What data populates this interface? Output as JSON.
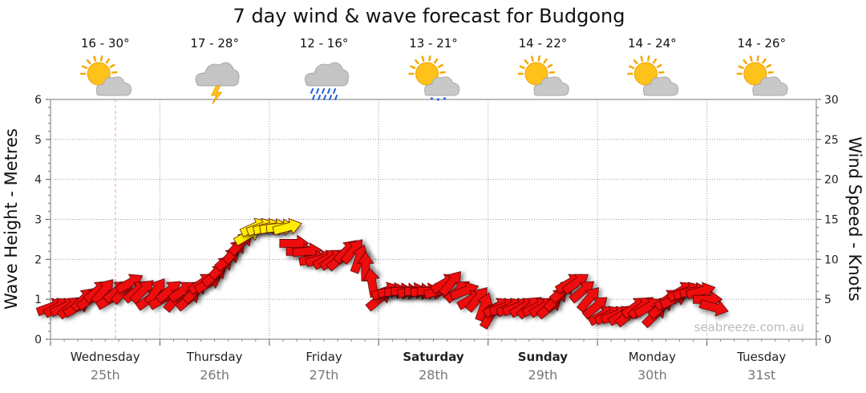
{
  "chart_data": {
    "type": "line",
    "title": "7 day wind & wave forecast for Budgong",
    "y_left": {
      "label": "Wave Height - Metres",
      "ticks": [
        0,
        1,
        2,
        3,
        4,
        5,
        6
      ],
      "ylim": [
        0,
        6
      ]
    },
    "y_right": {
      "label": "Wind Speed - Knots",
      "ticks": [
        0,
        5,
        10,
        15,
        20,
        25,
        30
      ],
      "ylim": [
        0,
        30
      ]
    },
    "days": [
      {
        "name": "Wednesday",
        "date": "25th",
        "bold": false,
        "temp": "16 - 30°",
        "icon": "sun-cloud-icon"
      },
      {
        "name": "Thursday",
        "date": "26th",
        "bold": false,
        "temp": "17 - 28°",
        "icon": "cloud-lightning-icon"
      },
      {
        "name": "Friday",
        "date": "27th",
        "bold": false,
        "temp": "12 - 16°",
        "icon": "rain-cloud-icon"
      },
      {
        "name": "Saturday",
        "date": "28th",
        "bold": true,
        "temp": "13 - 21°",
        "icon": "sun-cloud-drizzle-icon"
      },
      {
        "name": "Sunday",
        "date": "29th",
        "bold": true,
        "temp": "14 - 22°",
        "icon": "sun-cloud-icon"
      },
      {
        "name": "Monday",
        "date": "30th",
        "bold": false,
        "temp": "14 - 24°",
        "icon": "sun-cloud-icon"
      },
      {
        "name": "Tuesday",
        "date": "31st",
        "bold": false,
        "temp": "14 - 26°",
        "icon": "sun-cloud-icon"
      }
    ],
    "series": [
      {
        "name": "Wind Speed",
        "unit": "knots",
        "colors": {
          "normal": "#ee1111",
          "strong": "#ffee00"
        },
        "points": [
          [
            0.0,
            4,
            250
          ],
          [
            0.06,
            4,
            240
          ],
          [
            0.12,
            4,
            245
          ],
          [
            0.18,
            4,
            230
          ],
          [
            0.24,
            4,
            240
          ],
          [
            0.3,
            5,
            225
          ],
          [
            0.36,
            5,
            235
          ],
          [
            0.42,
            6,
            230
          ],
          [
            0.48,
            6,
            220
          ],
          [
            0.54,
            5,
            240
          ],
          [
            0.6,
            6,
            230
          ],
          [
            0.66,
            6,
            220
          ],
          [
            0.72,
            7,
            240
          ],
          [
            0.78,
            6,
            230
          ],
          [
            0.84,
            6,
            225
          ],
          [
            0.9,
            5,
            235
          ],
          [
            0.96,
            6,
            215
          ],
          [
            1.02,
            5,
            240
          ],
          [
            1.08,
            6,
            230
          ],
          [
            1.14,
            5,
            220
          ],
          [
            1.2,
            6,
            235
          ],
          [
            1.26,
            5,
            230
          ],
          [
            1.32,
            6,
            225
          ],
          [
            1.38,
            7,
            235
          ],
          [
            1.44,
            7,
            240
          ],
          [
            1.5,
            8,
            230
          ],
          [
            1.56,
            9,
            225
          ],
          [
            1.62,
            10,
            230
          ],
          [
            1.68,
            11,
            220
          ],
          [
            1.74,
            12,
            225
          ],
          [
            1.8,
            13,
            240
          ],
          [
            1.86,
            14,
            245
          ],
          [
            1.92,
            14,
            250
          ],
          [
            1.98,
            14,
            255
          ],
          [
            2.04,
            14,
            260
          ],
          [
            2.1,
            14,
            265
          ],
          [
            2.16,
            14,
            255
          ],
          [
            2.22,
            12,
            270
          ],
          [
            2.28,
            11,
            270
          ],
          [
            2.34,
            11,
            265
          ],
          [
            2.4,
            10,
            260
          ],
          [
            2.46,
            10,
            255
          ],
          [
            2.52,
            10,
            240
          ],
          [
            2.58,
            10,
            235
          ],
          [
            2.64,
            10,
            230
          ],
          [
            2.7,
            11,
            225
          ],
          [
            2.76,
            11,
            220
          ],
          [
            2.82,
            10,
            200
          ],
          [
            2.88,
            9,
            180
          ],
          [
            2.94,
            7,
            170
          ],
          [
            3.0,
            5,
            230
          ],
          [
            3.06,
            6,
            250
          ],
          [
            3.12,
            6,
            260
          ],
          [
            3.18,
            6,
            265
          ],
          [
            3.24,
            6,
            270
          ],
          [
            3.3,
            6,
            260
          ],
          [
            3.36,
            6,
            270
          ],
          [
            3.42,
            6,
            265
          ],
          [
            3.48,
            6,
            270
          ],
          [
            3.54,
            6,
            255
          ],
          [
            3.6,
            7,
            240
          ],
          [
            3.66,
            7,
            220
          ],
          [
            3.72,
            6,
            230
          ],
          [
            3.78,
            6,
            250
          ],
          [
            3.84,
            5,
            240
          ],
          [
            3.9,
            5,
            220
          ],
          [
            3.96,
            4,
            200
          ],
          [
            4.02,
            3,
            210
          ],
          [
            4.08,
            4,
            240
          ],
          [
            4.14,
            4,
            250
          ],
          [
            4.2,
            4,
            245
          ],
          [
            4.26,
            4,
            250
          ],
          [
            4.32,
            4,
            240
          ],
          [
            4.38,
            4,
            230
          ],
          [
            4.44,
            4,
            245
          ],
          [
            4.5,
            4,
            240
          ],
          [
            4.56,
            4,
            230
          ],
          [
            4.62,
            5,
            225
          ],
          [
            4.68,
            6,
            230
          ],
          [
            4.74,
            7,
            240
          ],
          [
            4.8,
            7,
            235
          ],
          [
            4.86,
            6,
            230
          ],
          [
            4.92,
            5,
            220
          ],
          [
            4.98,
            4,
            230
          ],
          [
            5.04,
            3,
            240
          ],
          [
            5.1,
            3,
            245
          ],
          [
            5.16,
            3,
            250
          ],
          [
            5.22,
            3,
            240
          ],
          [
            5.28,
            3,
            230
          ],
          [
            5.34,
            4,
            235
          ],
          [
            5.4,
            4,
            230
          ],
          [
            5.46,
            4,
            240
          ],
          [
            5.52,
            3,
            225
          ],
          [
            5.58,
            4,
            230
          ],
          [
            5.64,
            5,
            235
          ],
          [
            5.7,
            5,
            245
          ],
          [
            5.76,
            6,
            240
          ],
          [
            5.82,
            6,
            250
          ],
          [
            5.88,
            6,
            260
          ],
          [
            5.94,
            6,
            255
          ],
          [
            6.0,
            5,
            270
          ],
          [
            6.06,
            4,
            285
          ]
        ]
      }
    ],
    "watermark": "seabreeze.com.au"
  }
}
